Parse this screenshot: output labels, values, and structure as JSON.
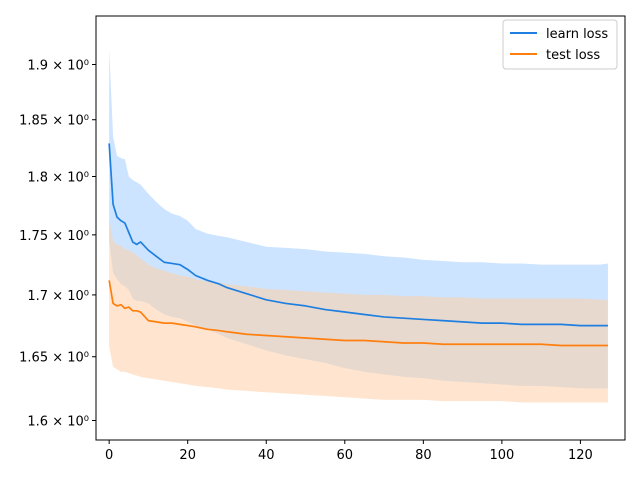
{
  "chart_data": {
    "type": "line",
    "title": "",
    "xlabel": "",
    "ylabel": "",
    "x_range": [
      -3.35,
      131.35
    ],
    "y_range": [
      1.585,
      1.945
    ],
    "y_scale": "log",
    "grid": false,
    "legend_position": "top-right",
    "x_ticks": [
      {
        "value": 0,
        "label": "0"
      },
      {
        "value": 20,
        "label": "20"
      },
      {
        "value": 40,
        "label": "40"
      },
      {
        "value": 60,
        "label": "60"
      },
      {
        "value": 80,
        "label": "80"
      },
      {
        "value": 100,
        "label": "100"
      },
      {
        "value": 120,
        "label": "120"
      }
    ],
    "y_ticks": [
      {
        "value": 1.6,
        "label": "1.6 × 10⁰"
      },
      {
        "value": 1.65,
        "label": "1.65 × 10⁰"
      },
      {
        "value": 1.7,
        "label": "1.7 × 10⁰"
      },
      {
        "value": 1.75,
        "label": "1.75 × 10⁰"
      },
      {
        "value": 1.8,
        "label": "1.8 × 10⁰"
      },
      {
        "value": 1.85,
        "label": "1.85 × 10⁰"
      },
      {
        "value": 1.9,
        "label": "1.9 × 10⁰"
      }
    ],
    "series": [
      {
        "name": "learn loss",
        "color": "#1f7fe0",
        "band_color": "#aad2ff",
        "x": [
          0,
          1,
          2,
          3,
          4,
          5,
          6,
          7,
          8,
          10,
          12,
          14,
          16,
          18,
          20,
          22,
          25,
          28,
          30,
          35,
          40,
          45,
          50,
          55,
          60,
          65,
          70,
          75,
          80,
          85,
          90,
          95,
          100,
          105,
          110,
          115,
          120,
          125,
          127
        ],
        "values": [
          1.829,
          1.776,
          1.765,
          1.762,
          1.76,
          1.752,
          1.744,
          1.742,
          1.744,
          1.737,
          1.732,
          1.727,
          1.726,
          1.725,
          1.721,
          1.716,
          1.712,
          1.709,
          1.706,
          1.701,
          1.696,
          1.693,
          1.691,
          1.688,
          1.686,
          1.684,
          1.682,
          1.681,
          1.68,
          1.679,
          1.678,
          1.677,
          1.677,
          1.676,
          1.676,
          1.676,
          1.675,
          1.675,
          1.675
        ],
        "upper": [
          1.915,
          1.835,
          1.818,
          1.816,
          1.815,
          1.8,
          1.797,
          1.795,
          1.793,
          1.785,
          1.778,
          1.772,
          1.768,
          1.766,
          1.762,
          1.755,
          1.751,
          1.749,
          1.748,
          1.744,
          1.74,
          1.739,
          1.738,
          1.736,
          1.735,
          1.734,
          1.732,
          1.731,
          1.729,
          1.728,
          1.727,
          1.727,
          1.726,
          1.726,
          1.725,
          1.725,
          1.725,
          1.725,
          1.726
        ],
        "lower": [
          1.745,
          1.718,
          1.713,
          1.709,
          1.707,
          1.704,
          1.697,
          1.695,
          1.695,
          1.693,
          1.688,
          1.684,
          1.682,
          1.681,
          1.678,
          1.675,
          1.672,
          1.668,
          1.665,
          1.66,
          1.655,
          1.651,
          1.648,
          1.645,
          1.641,
          1.638,
          1.636,
          1.634,
          1.633,
          1.631,
          1.63,
          1.629,
          1.628,
          1.627,
          1.627,
          1.626,
          1.625,
          1.625,
          1.625
        ]
      },
      {
        "name": "test loss",
        "color": "#ff7f0e",
        "band_color": "#ffd0a8",
        "x": [
          0,
          1,
          2,
          3,
          4,
          5,
          6,
          7,
          8,
          10,
          12,
          14,
          16,
          18,
          20,
          22,
          25,
          28,
          30,
          35,
          40,
          45,
          50,
          55,
          60,
          65,
          70,
          75,
          80,
          85,
          90,
          95,
          100,
          105,
          110,
          115,
          120,
          125,
          127
        ],
        "values": [
          1.712,
          1.693,
          1.691,
          1.692,
          1.689,
          1.69,
          1.687,
          1.687,
          1.686,
          1.679,
          1.678,
          1.677,
          1.677,
          1.676,
          1.675,
          1.674,
          1.672,
          1.671,
          1.67,
          1.668,
          1.667,
          1.666,
          1.665,
          1.664,
          1.663,
          1.663,
          1.662,
          1.661,
          1.661,
          1.66,
          1.66,
          1.66,
          1.66,
          1.66,
          1.66,
          1.659,
          1.659,
          1.659,
          1.659
        ],
        "upper": [
          1.764,
          1.745,
          1.742,
          1.741,
          1.738,
          1.737,
          1.735,
          1.733,
          1.73,
          1.725,
          1.722,
          1.72,
          1.718,
          1.716,
          1.715,
          1.713,
          1.711,
          1.71,
          1.709,
          1.707,
          1.705,
          1.704,
          1.703,
          1.702,
          1.701,
          1.7,
          1.7,
          1.699,
          1.699,
          1.698,
          1.698,
          1.697,
          1.697,
          1.697,
          1.697,
          1.697,
          1.697,
          1.696,
          1.696
        ],
        "lower": [
          1.658,
          1.642,
          1.64,
          1.638,
          1.638,
          1.637,
          1.636,
          1.635,
          1.634,
          1.633,
          1.632,
          1.631,
          1.63,
          1.629,
          1.628,
          1.627,
          1.626,
          1.625,
          1.624,
          1.623,
          1.622,
          1.621,
          1.62,
          1.619,
          1.618,
          1.617,
          1.616,
          1.616,
          1.616,
          1.615,
          1.615,
          1.615,
          1.615,
          1.614,
          1.614,
          1.614,
          1.614,
          1.614,
          1.614
        ]
      }
    ]
  }
}
